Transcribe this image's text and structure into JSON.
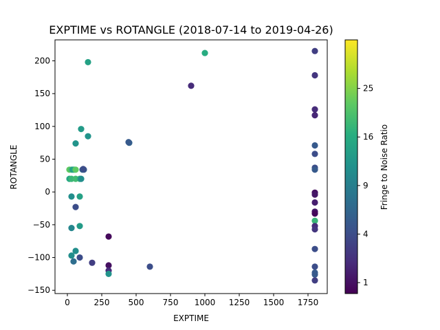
{
  "chart_data": {
    "type": "scatter",
    "title": "EXPTIME vs ROTANGLE (2018-07-14 to 2019-04-26)",
    "xlabel": "EXPTIME",
    "ylabel": "ROTANGLE",
    "xlim": [
      -90,
      1890
    ],
    "ylim": [
      -155,
      232
    ],
    "xticks": [
      0,
      250,
      500,
      750,
      1000,
      1250,
      1500,
      1750
    ],
    "yticks": [
      -150,
      -100,
      -50,
      0,
      50,
      100,
      150,
      200
    ],
    "grid": false,
    "colorbar": {
      "label": "Fringe to Noise Ratio",
      "scale": "sqrt",
      "range": [
        0.6,
        36
      ],
      "ticks": [
        1,
        4,
        9,
        16,
        25
      ],
      "colormap": "viridis"
    },
    "points": [
      {
        "x": 15,
        "y": 34,
        "c": 22
      },
      {
        "x": 30,
        "y": 34,
        "c": 19
      },
      {
        "x": 40,
        "y": 34,
        "c": 13
      },
      {
        "x": 50,
        "y": 34,
        "c": 15
      },
      {
        "x": 60,
        "y": 34,
        "c": 22
      },
      {
        "x": 110,
        "y": 34,
        "c": 6
      },
      {
        "x": 120,
        "y": 34,
        "c": 5
      },
      {
        "x": 115,
        "y": 35,
        "c": 4
      },
      {
        "x": 15,
        "y": 20,
        "c": 15
      },
      {
        "x": 30,
        "y": 20,
        "c": 18
      },
      {
        "x": 60,
        "y": 20,
        "c": 19
      },
      {
        "x": 90,
        "y": 20,
        "c": 17
      },
      {
        "x": 100,
        "y": 20,
        "c": 11
      },
      {
        "x": 30,
        "y": -7,
        "c": 11
      },
      {
        "x": 90,
        "y": -7,
        "c": 14
      },
      {
        "x": 60,
        "y": -23,
        "c": 4
      },
      {
        "x": 30,
        "y": -55,
        "c": 10
      },
      {
        "x": 90,
        "y": -52,
        "c": 13
      },
      {
        "x": 60,
        "y": -90,
        "c": 11
      },
      {
        "x": 30,
        "y": -97,
        "c": 11
      },
      {
        "x": 90,
        "y": -100,
        "c": 4
      },
      {
        "x": 45,
        "y": -106,
        "c": 7
      },
      {
        "x": 180,
        "y": -108,
        "c": 3
      },
      {
        "x": 100,
        "y": 96,
        "c": 13
      },
      {
        "x": 150,
        "y": 85,
        "c": 12
      },
      {
        "x": 60,
        "y": 74,
        "c": 12
      },
      {
        "x": 150,
        "y": 198,
        "c": 14
      },
      {
        "x": 450,
        "y": 75,
        "c": 6
      },
      {
        "x": 445,
        "y": 76,
        "c": 5
      },
      {
        "x": 300,
        "y": -68,
        "c": 0.8
      },
      {
        "x": 300,
        "y": -112,
        "c": 1
      },
      {
        "x": 300,
        "y": -120,
        "c": 2
      },
      {
        "x": 300,
        "y": -125,
        "c": 12
      },
      {
        "x": 600,
        "y": -114,
        "c": 4
      },
      {
        "x": 900,
        "y": 162,
        "c": 2
      },
      {
        "x": 1000,
        "y": 212,
        "c": 16
      },
      {
        "x": 1800,
        "y": 215,
        "c": 3
      },
      {
        "x": 1800,
        "y": 178,
        "c": 2.5
      },
      {
        "x": 1800,
        "y": 126,
        "c": 2
      },
      {
        "x": 1800,
        "y": 117,
        "c": 1.8
      },
      {
        "x": 1800,
        "y": 71,
        "c": 5
      },
      {
        "x": 1800,
        "y": 58,
        "c": 4
      },
      {
        "x": 1800,
        "y": 37,
        "c": 4
      },
      {
        "x": 1800,
        "y": 34,
        "c": 5
      },
      {
        "x": 1800,
        "y": -1,
        "c": 1
      },
      {
        "x": 1800,
        "y": -4,
        "c": 1.2
      },
      {
        "x": 1800,
        "y": -16,
        "c": 1.5
      },
      {
        "x": 1800,
        "y": -30,
        "c": 1.2
      },
      {
        "x": 1800,
        "y": -33,
        "c": 0.8
      },
      {
        "x": 1800,
        "y": -44,
        "c": 18
      },
      {
        "x": 1800,
        "y": -52,
        "c": 2
      },
      {
        "x": 1800,
        "y": -57,
        "c": 2.5
      },
      {
        "x": 1800,
        "y": -87,
        "c": 4
      },
      {
        "x": 1800,
        "y": -114,
        "c": 4
      },
      {
        "x": 1800,
        "y": -123,
        "c": 5
      },
      {
        "x": 1800,
        "y": -126,
        "c": 5
      },
      {
        "x": 1800,
        "y": -135,
        "c": 3
      }
    ]
  }
}
